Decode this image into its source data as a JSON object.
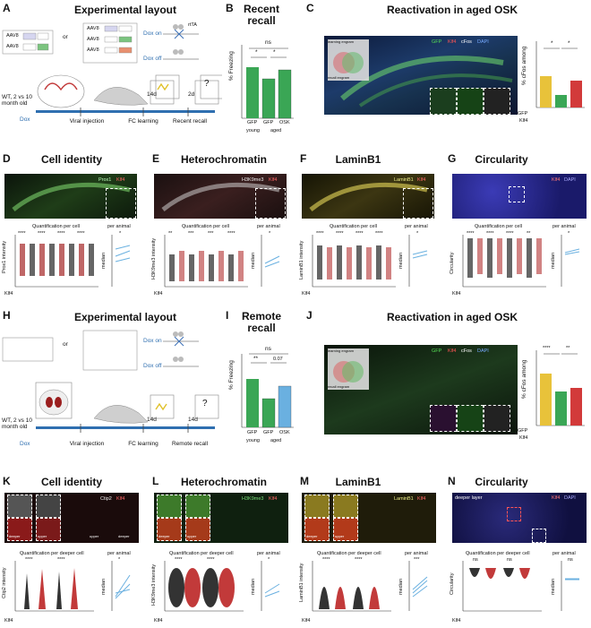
{
  "panels": {
    "A": {
      "label": "A",
      "title": "Experimental layout",
      "aav": [
        "AAV8",
        "AAV8",
        "AAV8",
        "AAV8",
        "AAV8"
      ],
      "or": "or",
      "dox_on": "Dox on",
      "dox_off": "Dox off",
      "timeline": [
        "Viral injection",
        "FC learning",
        "Recent recall"
      ],
      "dur1": "14d",
      "dur2": "2d",
      "group": "WT, 2 vs 10 month old",
      "dox": "Dox",
      "rtta": "rtTA",
      "q": "?"
    },
    "B": {
      "label": "B",
      "title": "Recent recall",
      "ylabel": "% Freezing",
      "groups": [
        "GFP",
        "GFP",
        "OSK"
      ],
      "age": [
        "young",
        "aged"
      ],
      "sig": [
        "*",
        "*",
        "ns"
      ]
    },
    "C": {
      "label": "C",
      "title": "Reactivation in aged OSK",
      "channels": [
        "GFP",
        "Klf4",
        "cFos",
        "DAPI"
      ],
      "ylabel": "% cFos among",
      "rows": [
        "GFP",
        "Klf4"
      ],
      "signs": [
        "+",
        "-",
        "+",
        "+",
        "-",
        "+"
      ],
      "sig": [
        "*",
        "*"
      ],
      "venn": [
        "learning engram",
        "recall engram"
      ]
    },
    "D": {
      "label": "D",
      "title": "Cell identity",
      "channels": [
        "Prox1",
        "Klf4"
      ],
      "sub1": "Quantification per cell",
      "sub2": "per animal",
      "ylabel": "Prox1 intensity",
      "ylabel2": "median",
      "xrow": "Klf4",
      "stars": [
        "****",
        "****",
        "****",
        "****"
      ],
      "star2": "*"
    },
    "E": {
      "label": "E",
      "title": "Heterochromatin",
      "channels": [
        "H3K9me3",
        "Klf4"
      ],
      "sub1": "Quantification per cell",
      "sub2": "per animal",
      "ylabel": "H3K9me3 intensity",
      "ylabel2": "median",
      "xrow": "Klf4",
      "stars": [
        "**",
        "***",
        "***",
        "****"
      ],
      "star2": "*"
    },
    "F": {
      "label": "F",
      "title": "LaminB1",
      "channels": [
        "LaminB1",
        "Klf4"
      ],
      "sub1": "Quantification per cell",
      "sub2": "per animal",
      "ylabel": "LaminB1 intensity",
      "ylabel2": "median",
      "xrow": "Klf4",
      "stars": [
        "****",
        "****",
        "****",
        "****"
      ],
      "star2": "*"
    },
    "G": {
      "label": "G",
      "title": "Circularity",
      "channels": [
        "Klf4",
        "DAPI"
      ],
      "sub1": "Quantification per cell",
      "sub2": "per animal",
      "ylabel": "Circularity",
      "ylabel2": "median",
      "xrow": "Klf4",
      "stars": [
        "****",
        "****",
        "****",
        "**"
      ],
      "star2": "*"
    },
    "H": {
      "label": "H",
      "title": "Experimental layout",
      "timeline": [
        "Viral injection",
        "FC learning",
        "Remote recall"
      ],
      "dur1": "14d",
      "dur2": "14d",
      "group": "WT, 2 vs 10 month old",
      "dox": "Dox",
      "dox_on": "Dox on",
      "dox_off": "Dox off",
      "or": "or",
      "q": "?"
    },
    "I": {
      "label": "I",
      "title": "Remote recall",
      "ylabel": "% Freezing",
      "groups": [
        "GFP",
        "GFP",
        "OSK"
      ],
      "age": [
        "young",
        "aged"
      ],
      "sig": [
        "**",
        "0.07",
        "ns"
      ]
    },
    "J": {
      "label": "J",
      "title": "Reactivation in aged OSK",
      "channels": [
        "GFP",
        "Klf4",
        "cFos",
        "DAPI"
      ],
      "ylabel": "% cFos among",
      "rows": [
        "GFP",
        "Klf4"
      ],
      "signs": [
        "+",
        "-",
        "+",
        "+",
        "-",
        "+"
      ],
      "sig": [
        "****",
        "**"
      ],
      "venn": [
        "learning engram",
        "recall engram"
      ]
    },
    "K": {
      "label": "K",
      "title": "Cell identity",
      "channels": [
        "Ctip2",
        "Klf4"
      ],
      "sub1": "Quantification per deeper cell",
      "sub2": "per animal",
      "ylabel": "Ctip2 intensity",
      "ylabel2": "median",
      "xrow": "Klf4",
      "layers": [
        "deeper",
        "upper",
        "upper",
        "deeper"
      ],
      "stars": [
        "****",
        "****"
      ],
      "star2": "*"
    },
    "L": {
      "label": "L",
      "title": "Heterochromatin",
      "channels": [
        "H3K9me3",
        "Klf4"
      ],
      "sub1": "Quantification per deeper cell",
      "sub2": "per animal",
      "ylabel": "H3K9me3 intensity",
      "ylabel2": "median",
      "xrow": "Klf4",
      "layers": [
        "deeper",
        "upper"
      ],
      "stars": [
        "****",
        "****"
      ],
      "star2": "*"
    },
    "M": {
      "label": "M",
      "title": "LaminB1",
      "channels": [
        "LaminB1",
        "Klf4"
      ],
      "sub1": "Quantification per deeper cell",
      "sub2": "per animal",
      "ylabel": "LaminB1 intensity",
      "ylabel2": "median",
      "xrow": "Klf4",
      "layers": [
        "deeper",
        "upper"
      ],
      "stars": [
        "****",
        "****"
      ],
      "star2": "***"
    },
    "N": {
      "label": "N",
      "title": "Circularity",
      "channels": [
        "Klf4",
        "DAPI"
      ],
      "inset_label": "deeper layer",
      "sub1": "Quantification per deeper cell",
      "sub2": "per animal",
      "ylabel": "Circularity",
      "ylabel2": "median",
      "xrow": "Klf4",
      "stars": [
        "ns",
        "ns"
      ],
      "star2": "ns"
    }
  },
  "colors": {
    "green": "#3aa655",
    "red": "#d23a3a",
    "yellow": "#e8c23a",
    "blue": "#2f6fb0",
    "gray": "#888888"
  }
}
